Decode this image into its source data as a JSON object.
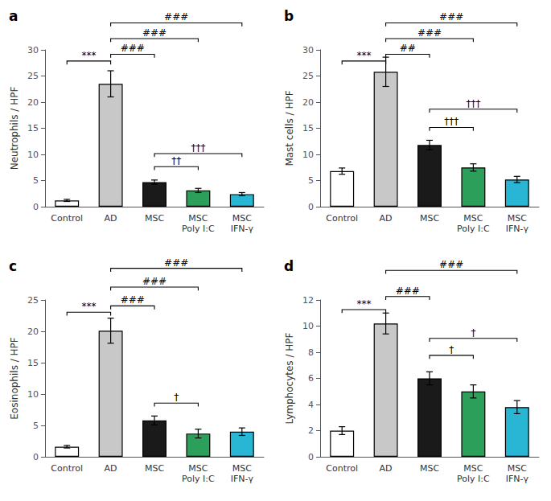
{
  "chart_data": [
    {
      "type": "bar",
      "title": "a",
      "ylabel": "Neutrophils / HPF",
      "categories": [
        "Control",
        "AD",
        "MSC",
        "MSC\nPoly I:C",
        "MSC\nIFN-γ"
      ],
      "values": [
        1.2,
        23.5,
        4.7,
        3.1,
        2.4
      ],
      "errors": [
        0.2,
        2.5,
        0.4,
        0.4,
        0.3
      ],
      "colors": [
        "#ffffff",
        "#c8c8c8",
        "#1a1a1a",
        "#2ca05a",
        "#29b6d5"
      ],
      "ylim": [
        0,
        30
      ],
      "yticks": [
        0,
        5,
        10,
        15,
        20,
        25,
        30
      ],
      "grid": false,
      "annotations": [
        {
          "x1": "Control",
          "x2": "AD",
          "y": 27.2,
          "text": "***"
        },
        {
          "x1": "AD",
          "x2": "MSC",
          "y": 28.5,
          "text": "###"
        },
        {
          "x1": "AD",
          "x2": "MSC\nPoly I:C",
          "y": 31.5,
          "text": "###"
        },
        {
          "x1": "AD",
          "x2": "MSC\nIFN-γ",
          "y": 34.5,
          "text": "###"
        },
        {
          "x1": "MSC",
          "x2": "MSC\nPoly I:C",
          "y": 7.0,
          "text": "††"
        },
        {
          "x1": "MSC",
          "x2": "MSC\nIFN-γ",
          "y": 9.5,
          "text": "†††"
        }
      ]
    },
    {
      "type": "bar",
      "title": "b",
      "ylabel": "Mast cells / HPF",
      "categories": [
        "Control",
        "AD",
        "MSC",
        "MSC\nPoly I:C",
        "MSC\nIFN-γ"
      ],
      "values": [
        6.8,
        25.8,
        11.8,
        7.5,
        5.2
      ],
      "errors": [
        0.6,
        2.8,
        0.9,
        0.7,
        0.6
      ],
      "colors": [
        "#ffffff",
        "#c8c8c8",
        "#1a1a1a",
        "#2ca05a",
        "#29b6d5"
      ],
      "ylim": [
        0,
        30
      ],
      "yticks": [
        0,
        5,
        10,
        15,
        20,
        25,
        30
      ],
      "grid": false,
      "annotations": [
        {
          "x1": "Control",
          "x2": "AD",
          "y": 27.2,
          "text": "***"
        },
        {
          "x1": "AD",
          "x2": "MSC",
          "y": 28.5,
          "text": "##"
        },
        {
          "x1": "AD",
          "x2": "MSC\nPoly I:C",
          "y": 31.5,
          "text": "###"
        },
        {
          "x1": "AD",
          "x2": "MSC\nIFN-γ",
          "y": 34.5,
          "text": "###"
        },
        {
          "x1": "MSC",
          "x2": "MSC\nPoly I:C",
          "y": 14.5,
          "text": "†††"
        },
        {
          "x1": "MSC",
          "x2": "MSC\nIFN-γ",
          "y": 18.0,
          "text": "†††"
        }
      ]
    },
    {
      "type": "bar",
      "title": "c",
      "ylabel": "Eosinophils / HPF",
      "categories": [
        "Control",
        "AD",
        "MSC",
        "MSC\nPoly I:C",
        "MSC\nIFN-γ"
      ],
      "values": [
        1.6,
        20.1,
        5.8,
        3.7,
        4.0
      ],
      "errors": [
        0.2,
        2.0,
        0.7,
        0.7,
        0.6
      ],
      "colors": [
        "#ffffff",
        "#c8c8c8",
        "#1a1a1a",
        "#2ca05a",
        "#29b6d5"
      ],
      "ylim": [
        0,
        25
      ],
      "yticks": [
        0,
        5,
        10,
        15,
        20,
        25
      ],
      "grid": false,
      "annotations": [
        {
          "x1": "Control",
          "x2": "AD",
          "y": 22.5,
          "text": "***"
        },
        {
          "x1": "AD",
          "x2": "MSC",
          "y": 23.5,
          "text": "###"
        },
        {
          "x1": "AD",
          "x2": "MSC\nPoly I:C",
          "y": 26.5,
          "text": "###"
        },
        {
          "x1": "AD",
          "x2": "MSC\nIFN-γ",
          "y": 29.5,
          "text": "###"
        },
        {
          "x1": "MSC",
          "x2": "MSC\nPoly I:C",
          "y": 8.0,
          "text": "†"
        }
      ]
    },
    {
      "type": "bar",
      "title": "d",
      "ylabel": "Lymphocytes / HPF",
      "categories": [
        "Control",
        "AD",
        "MSC",
        "MSC\nPoly I:C",
        "MSC\nIFN-γ"
      ],
      "values": [
        2.0,
        10.2,
        6.0,
        5.0,
        3.8
      ],
      "errors": [
        0.3,
        0.8,
        0.5,
        0.5,
        0.5
      ],
      "colors": [
        "#ffffff",
        "#c8c8c8",
        "#1a1a1a",
        "#2ca05a",
        "#29b6d5"
      ],
      "ylim": [
        0,
        12
      ],
      "yticks": [
        0,
        2,
        4,
        6,
        8,
        10,
        12
      ],
      "grid": false,
      "annotations": [
        {
          "x1": "Control",
          "x2": "AD",
          "y": 11.0,
          "text": "***"
        },
        {
          "x1": "AD",
          "x2": "MSC",
          "y": 12.0,
          "text": "###"
        },
        {
          "x1": "AD",
          "x2": "MSC\nIFN-γ",
          "y": 14.0,
          "text": "###"
        },
        {
          "x1": "MSC",
          "x2": "MSC\nPoly I:C",
          "y": 7.5,
          "text": "†"
        },
        {
          "x1": "MSC",
          "x2": "MSC\nIFN-γ",
          "y": 8.8,
          "text": "†"
        }
      ]
    }
  ]
}
